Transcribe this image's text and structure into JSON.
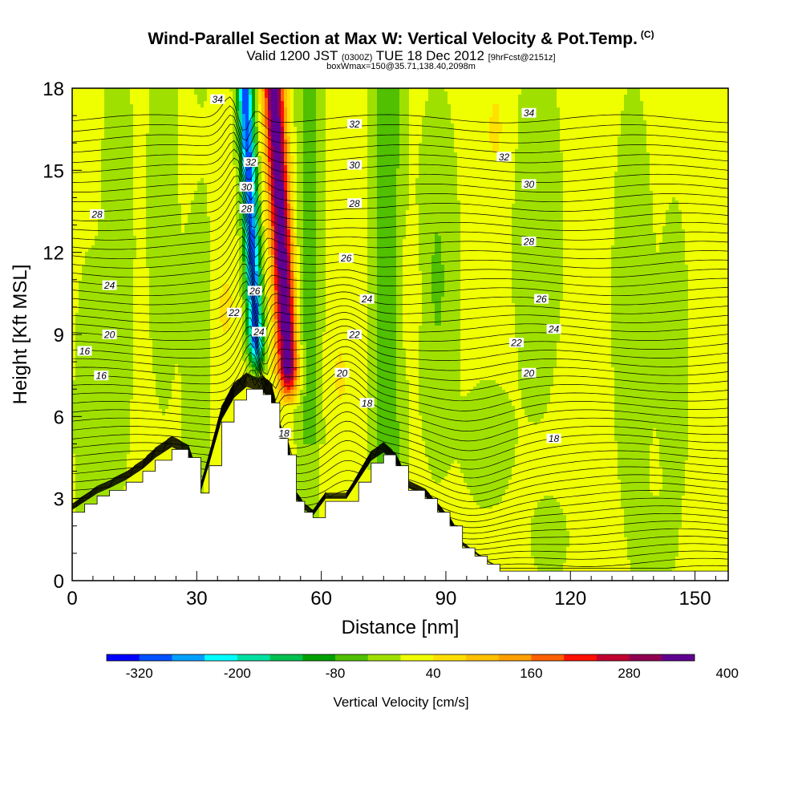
{
  "title": "Wind-Parallel Section at Max W: Vertical Velocity & Pot.Temp.",
  "copyright_mark": "(C)",
  "valid_prefix": "Valid 1200 JST",
  "valid_utc": "(0300Z)",
  "valid_date": "TUE 18 Dec 2012",
  "forecast_info": "[9hrFcst@2151z]",
  "box_info": "boxWmax=150@35.71,138.40,2098m",
  "chart_data": {
    "type": "heatmap",
    "xlabel": "Distance [nm]",
    "ylabel": "Height [Kft MSL]",
    "xlim": [
      0,
      158
    ],
    "ylim": [
      0,
      18
    ],
    "x_ticks": [
      0,
      30,
      60,
      90,
      120,
      150
    ],
    "y_ticks": [
      0,
      3,
      6,
      9,
      12,
      15,
      18
    ],
    "colorbar": {
      "label": "Vertical Velocity [cm/s]",
      "tick_labels": [
        "-320",
        "-200",
        "-80",
        "40",
        "160",
        "280",
        "400"
      ],
      "colors": [
        "#0000ff",
        "#0050ff",
        "#00a0ff",
        "#00ffff",
        "#00e0a0",
        "#00c050",
        "#00a000",
        "#50c000",
        "#a0e000",
        "#f0ff00",
        "#ffe000",
        "#ffc000",
        "#ffa000",
        "#ff6000",
        "#ff1000",
        "#c00030",
        "#900050",
        "#600090"
      ]
    },
    "terrain": [
      [
        0,
        2.5
      ],
      [
        3,
        2.8
      ],
      [
        6,
        3.1
      ],
      [
        9,
        3.3
      ],
      [
        13,
        3.6
      ],
      [
        17,
        4.0
      ],
      [
        20,
        4.4
      ],
      [
        24,
        4.8
      ],
      [
        28,
        4.5
      ],
      [
        31,
        3.2
      ],
      [
        33,
        4.2
      ],
      [
        36,
        5.8
      ],
      [
        39,
        6.6
      ],
      [
        42,
        7.0
      ],
      [
        46,
        6.8
      ],
      [
        48,
        6.5
      ],
      [
        50,
        5.2
      ],
      [
        52,
        4.6
      ],
      [
        54,
        2.9
      ],
      [
        56,
        2.5
      ],
      [
        58,
        2.3
      ],
      [
        61,
        2.9
      ],
      [
        66,
        2.9
      ],
      [
        69,
        3.6
      ],
      [
        72,
        4.3
      ],
      [
        75,
        4.6
      ],
      [
        78,
        4.2
      ],
      [
        81,
        3.3
      ],
      [
        85,
        3.0
      ],
      [
        88,
        2.5
      ],
      [
        91,
        2.0
      ],
      [
        94,
        1.2
      ],
      [
        97,
        0.9
      ],
      [
        100,
        0.6
      ],
      [
        103,
        0.35
      ],
      [
        158,
        0.35
      ]
    ],
    "isentropes": [
      {
        "value": 16,
        "labels": [
          [
            7,
            7.5
          ],
          [
            3,
            8.4
          ]
        ]
      },
      {
        "value": 18,
        "labels": [
          [
            51,
            5.4
          ],
          [
            71,
            6.5
          ],
          [
            116,
            5.2
          ]
        ]
      },
      {
        "value": 20,
        "labels": [
          [
            9,
            9.0
          ],
          [
            65,
            7.6
          ],
          [
            110,
            7.6
          ]
        ]
      },
      {
        "value": 22,
        "labels": [
          [
            39,
            9.8
          ],
          [
            68,
            9.0
          ],
          [
            107,
            8.7
          ]
        ]
      },
      {
        "value": 24,
        "labels": [
          [
            9,
            10.8
          ],
          [
            45,
            9.1
          ],
          [
            71,
            10.3
          ],
          [
            116,
            9.2
          ]
        ]
      },
      {
        "value": 26,
        "labels": [
          [
            44,
            10.6
          ],
          [
            66,
            11.8
          ],
          [
            113,
            10.3
          ]
        ]
      },
      {
        "value": 28,
        "labels": [
          [
            6,
            13.4
          ],
          [
            42,
            13.6
          ],
          [
            68,
            13.8
          ],
          [
            110,
            12.4
          ]
        ]
      },
      {
        "value": 30,
        "labels": [
          [
            42,
            14.4
          ],
          [
            68,
            15.2
          ],
          [
            110,
            14.5
          ]
        ]
      },
      {
        "value": 32,
        "labels": [
          [
            43,
            15.3
          ],
          [
            68,
            16.7
          ],
          [
            104,
            15.5
          ]
        ]
      },
      {
        "value": 34,
        "labels": [
          [
            35,
            17.6
          ],
          [
            110,
            17.1
          ]
        ]
      }
    ]
  }
}
